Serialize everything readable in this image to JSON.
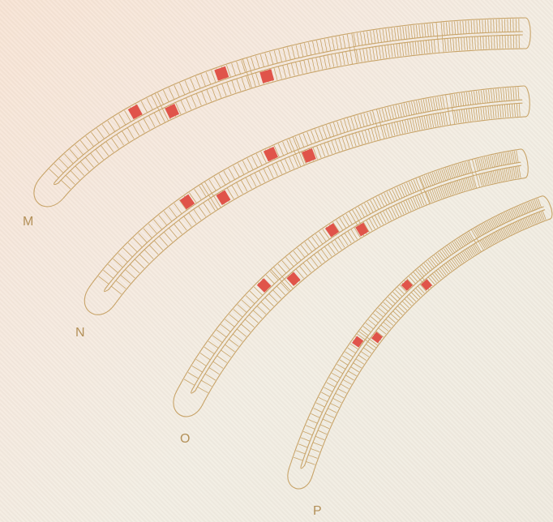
{
  "colors": {
    "outline": "#c8a469",
    "highlight": "#e0544a",
    "label": "#b39058"
  },
  "rows": [
    {
      "id": "M",
      "label": "M"
    },
    {
      "id": "N",
      "label": "N"
    },
    {
      "id": "O",
      "label": "O"
    },
    {
      "id": "P",
      "label": "P"
    }
  ]
}
